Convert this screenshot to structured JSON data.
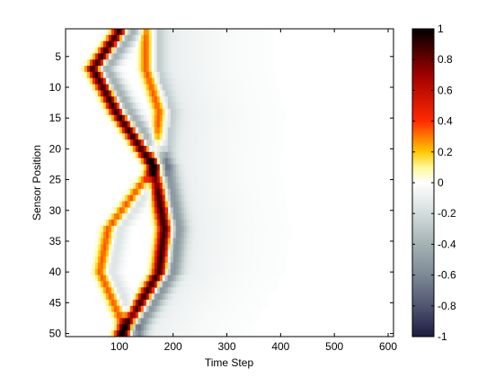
{
  "chart_data": {
    "type": "heatmap",
    "xlabel": "Time Step",
    "ylabel": "Sensor Position",
    "xlim": [
      0,
      610
    ],
    "ylim": [
      0.5,
      50.5
    ],
    "y_reversed": true,
    "x_ticks": [
      100,
      200,
      300,
      400,
      500,
      600
    ],
    "y_ticks": [
      5,
      10,
      15,
      20,
      25,
      30,
      35,
      40,
      45,
      50
    ],
    "n_sensors": 50,
    "grid": false,
    "colormap": "hot-to-cold diverging (black-red-yellow-white-grey-navy)",
    "colorbar": {
      "ticks": [
        1,
        0.8,
        0.6,
        0.4,
        0.2,
        0,
        -0.2,
        -0.4,
        -0.6,
        -0.8,
        -1
      ],
      "tick_labels": [
        "1",
        "0.8",
        "0.6",
        "0.4",
        "0.2",
        "0",
        "-0.2",
        "-0.4",
        "-0.6",
        "-0.8",
        "-1"
      ],
      "clim": [
        -1,
        1
      ]
    },
    "wave_fronts": [
      {
        "sensor": 1,
        "t_primary": 100,
        "t_secondary": 150
      },
      {
        "sensor": 7,
        "t_primary": 52,
        "t_secondary": 150
      },
      {
        "sensor": 14,
        "t_primary": 95,
        "t_secondary": 175
      },
      {
        "sensor": 23,
        "t_primary": 165,
        "t_secondary": 165
      },
      {
        "sensor": 33,
        "t_primary": 185,
        "t_secondary": 80
      },
      {
        "sensor": 40,
        "t_primary": 175,
        "t_secondary": 65
      },
      {
        "sensor": 50,
        "t_primary": 105,
        "t_secondary": 115
      }
    ]
  }
}
